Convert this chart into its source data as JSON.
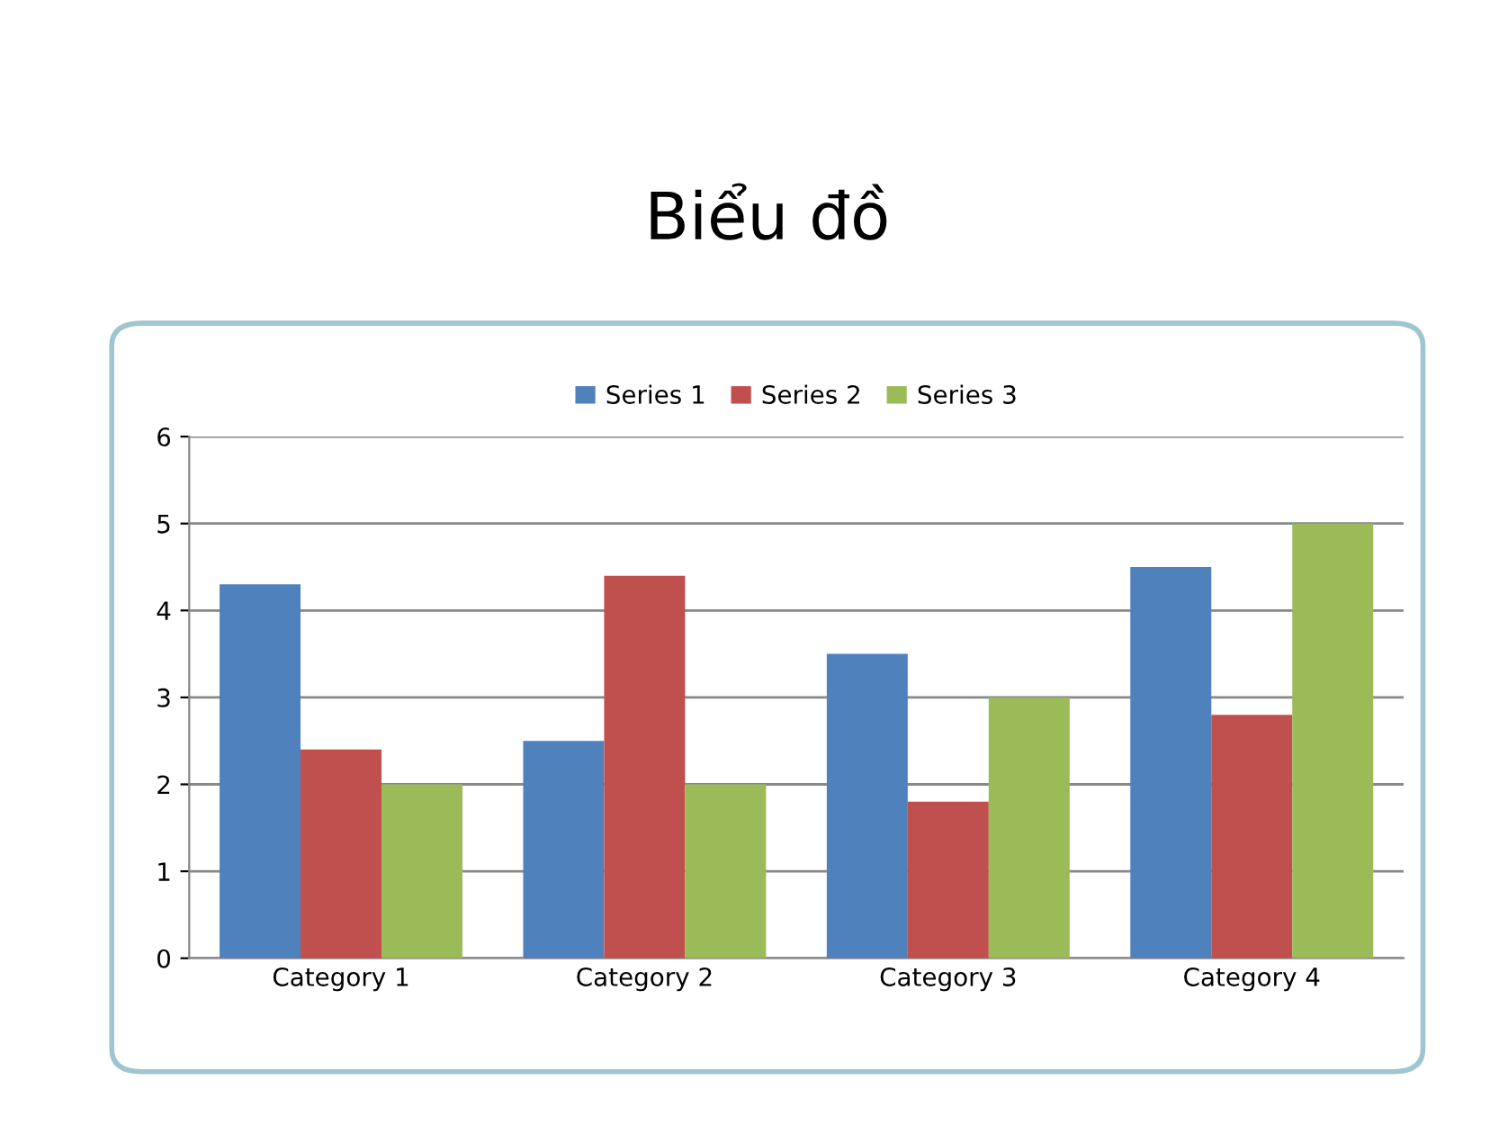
{
  "chart_data": {
    "type": "bar",
    "title": "Biểu đồ",
    "categories": [
      "Category 1",
      "Category 2",
      "Category 3",
      "Category 4"
    ],
    "series": [
      {
        "name": "Series 1",
        "color": "#4f81bd",
        "values": [
          4.3,
          2.5,
          3.5,
          4.5
        ]
      },
      {
        "name": "Series 2",
        "color": "#c0504d",
        "values": [
          2.4,
          4.4,
          1.8,
          2.8
        ]
      },
      {
        "name": "Series 3",
        "color": "#9bbb59",
        "values": [
          2,
          2,
          3,
          5
        ]
      }
    ],
    "ylim": [
      0,
      6
    ],
    "yticks": [
      0,
      1,
      2,
      3,
      4,
      5,
      6
    ],
    "grid": "y",
    "legend": "top"
  }
}
